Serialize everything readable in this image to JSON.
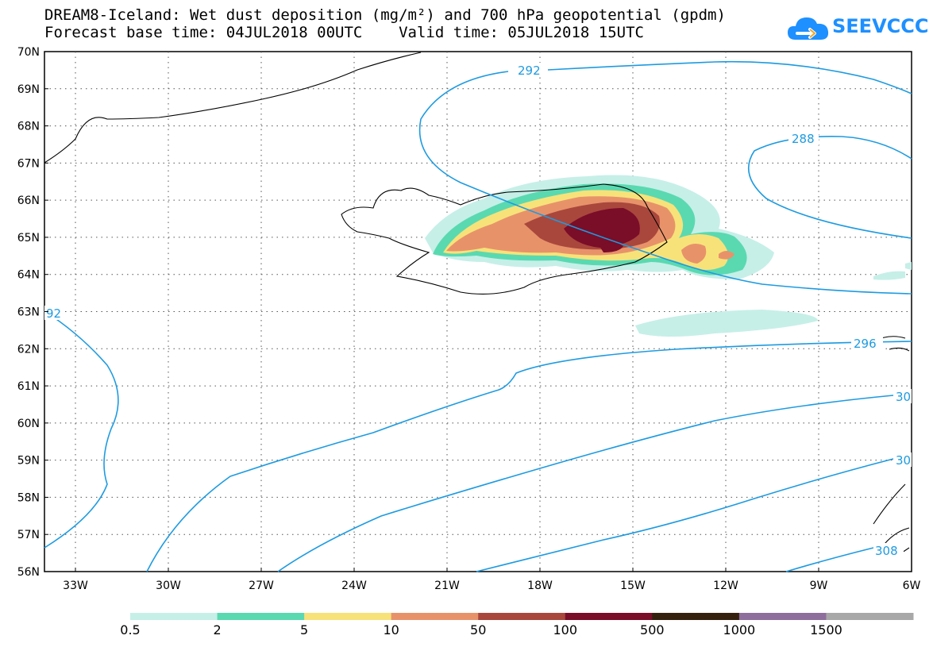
{
  "title": {
    "line1": "DREAM8-Iceland: Wet dust deposition (mg/m²) and 700 hPa geopotential (gpdm)",
    "line2": "Forecast base time: 04JUL2018 00UTC    Valid time: 05JUL2018 15UTC"
  },
  "logo": {
    "text": "SEEVCCC",
    "icon": "cloud-icon",
    "color": "#1e90ff"
  },
  "map": {
    "lat_labels": [
      "70N",
      "69N",
      "68N",
      "67N",
      "66N",
      "65N",
      "64N",
      "63N",
      "62N",
      "61N",
      "60N",
      "59N",
      "58N",
      "57N",
      "56N"
    ],
    "lon_labels": [
      "33W",
      "30W",
      "27W",
      "24W",
      "21W",
      "18W",
      "15W",
      "12W",
      "9W",
      "6W"
    ],
    "contour_color": "#1e9be0",
    "contour_labels": [
      "292",
      "288",
      "92",
      "296",
      "30",
      "30",
      "308"
    ]
  },
  "colorbar": {
    "colors": [
      "#c6efe8",
      "#5ad9b0",
      "#f7e27a",
      "#e8926a",
      "#a9473d",
      "#7a0d28",
      "#35200e",
      "#8e6e9c",
      "#a8a8a8"
    ],
    "labels": [
      "0.5",
      "2",
      "5",
      "10",
      "50",
      "100",
      "500",
      "1000",
      "1500"
    ]
  }
}
